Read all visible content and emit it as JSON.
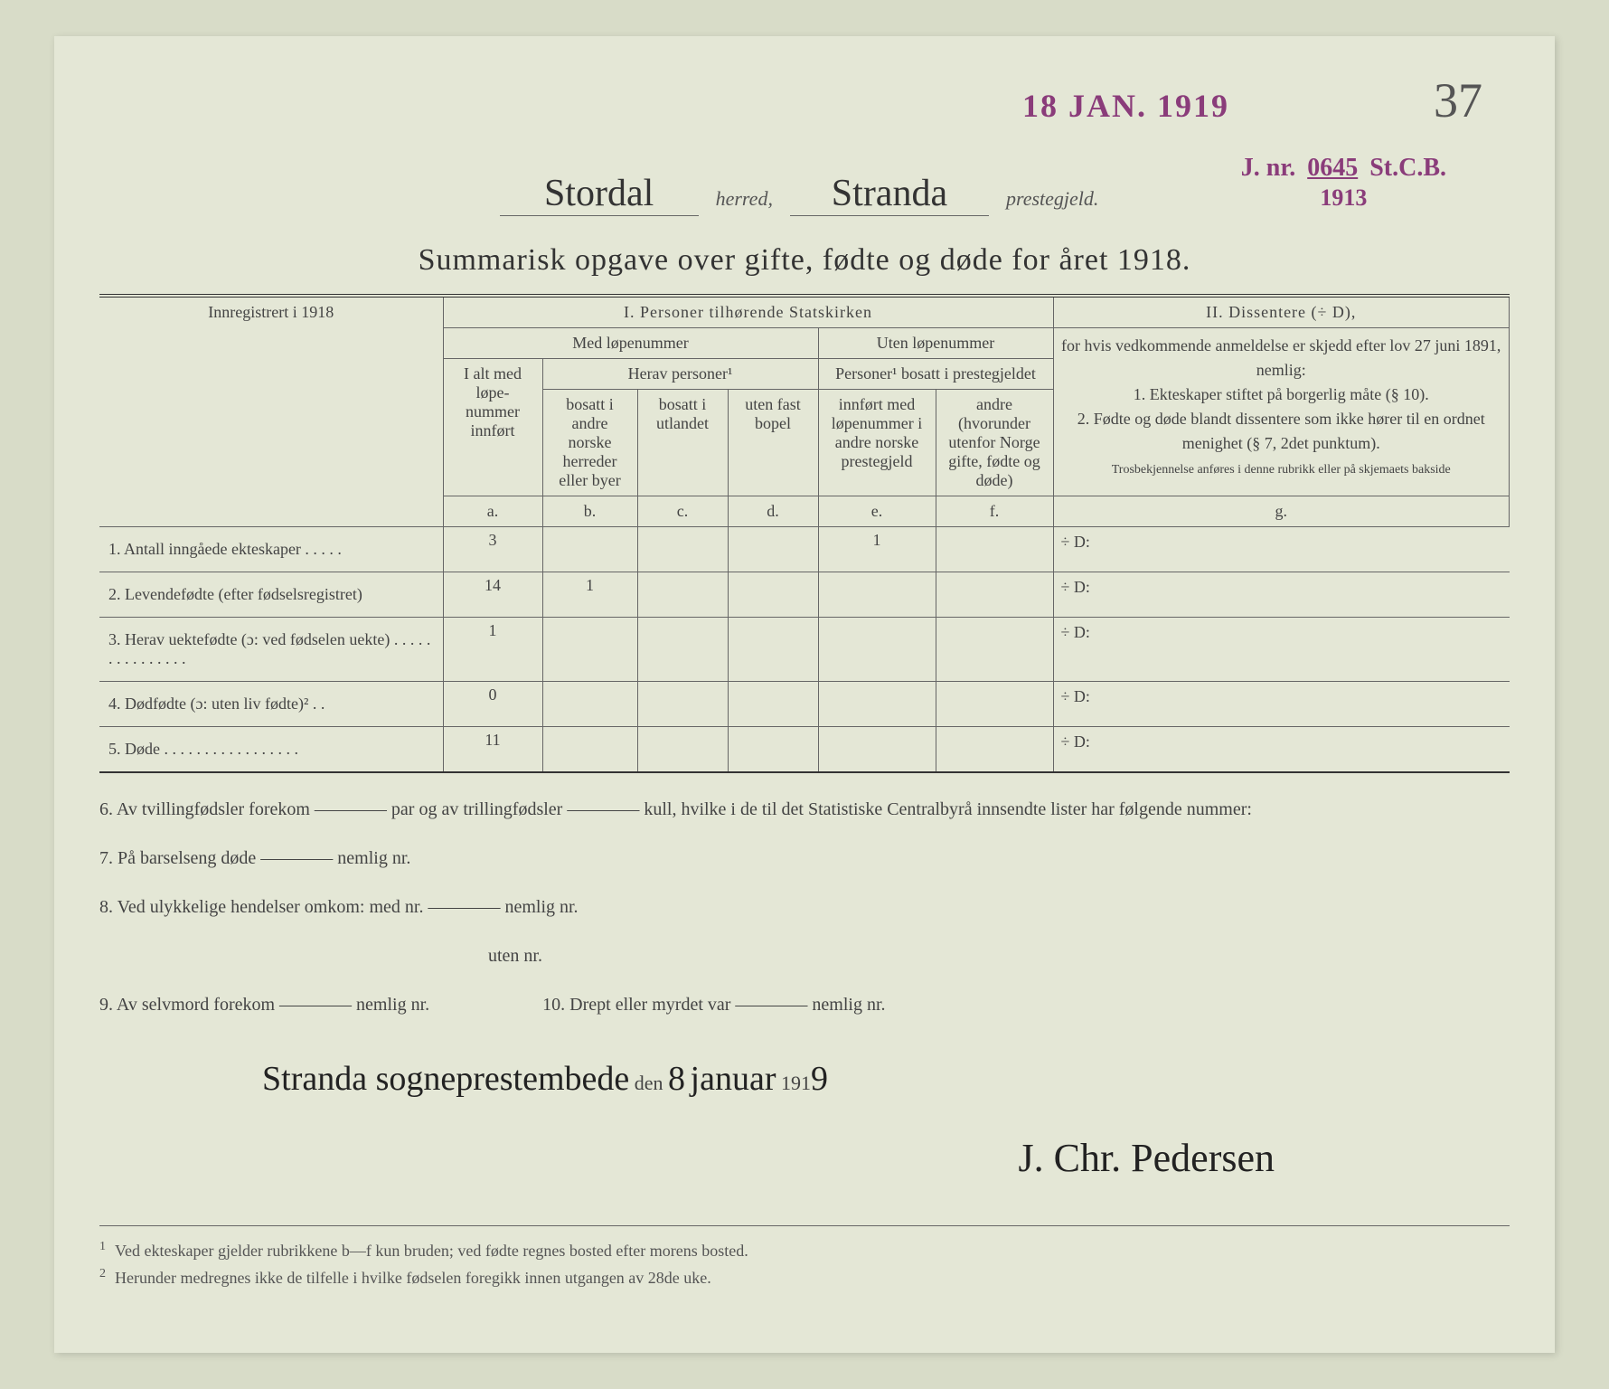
{
  "stamps": {
    "date": "18 JAN. 1919",
    "j_nr_label": "J. nr.",
    "j_nr_value": "0645",
    "j_nr_suffix": "St.C.B.",
    "j_nr_year": "1913",
    "page_number": "37"
  },
  "header": {
    "herred_value": "Stordal",
    "herred_label": "herred,",
    "prestegjeld_value": "Stranda",
    "prestegjeld_label": "prestegjeld.",
    "title": "Summarisk opgave over gifte, fødte og døde for året 1918."
  },
  "table": {
    "left_header": "Innregistrert i 1918",
    "section1_title": "I.  Personer tilhørende Statskirken",
    "section2_title": "II.  Dissentere (÷ D),",
    "med_lopenummer": "Med løpenummer",
    "uten_lopenummer": "Uten løpenummer",
    "herav_personer": "Herav personer¹",
    "personer_bosatt": "Personer¹ bosatt i prestegjeldet",
    "col_a": {
      "label": "I alt med løpe-nummer innført",
      "letter": "a."
    },
    "col_b": {
      "label": "bosatt i andre norske herreder eller byer",
      "letter": "b."
    },
    "col_c": {
      "label": "bosatt i utlandet",
      "letter": "c."
    },
    "col_d": {
      "label": "uten fast bopel",
      "letter": "d."
    },
    "col_e": {
      "label": "innført med løpenummer i andre norske prestegjeld",
      "letter": "e."
    },
    "col_f": {
      "label": "andre (hvorunder utenfor Norge gifte, fødte og døde)",
      "letter": "f."
    },
    "col_g": {
      "letter": "g."
    },
    "dissenter_text": "for hvis vedkommende anmeldelse er skjedd efter lov 27 juni 1891, nemlig:",
    "dissenter_item1": "1. Ekteskaper stiftet på borgerlig måte (§ 10).",
    "dissenter_item2": "2. Fødte og døde blandt dissentere som ikke hører til en ordnet menighet (§ 7, 2det punktum).",
    "dissenter_note": "Trosbekjennelse anføres i denne rubrikk eller på skjemaets bakside",
    "rows": [
      {
        "label": "1.  Antall inngåede ekteskaper . . . . .",
        "a": "3",
        "b": "",
        "c": "",
        "d": "",
        "e": "1",
        "f": "",
        "g": "÷ D:"
      },
      {
        "label": "2.  Levendefødte (efter fødselsregistret)",
        "a": "14",
        "b": "1",
        "c": "",
        "d": "",
        "e": "",
        "f": "",
        "g": "÷ D:"
      },
      {
        "label": "3.  Herav uektefødte (ɔ: ved fødselen uekte) . . . . . . . . . . . . . . .",
        "a": "1",
        "b": "",
        "c": "",
        "d": "",
        "e": "",
        "f": "",
        "g": "÷ D:"
      },
      {
        "label": "4.  Dødfødte (ɔ: uten liv fødte)² . .",
        "a": "0",
        "b": "",
        "c": "",
        "d": "",
        "e": "",
        "f": "",
        "g": "÷ D:"
      },
      {
        "label": "5.  Døde . . . . . . . . . . . . . . . . .",
        "a": "11",
        "b": "",
        "c": "",
        "d": "",
        "e": "",
        "f": "",
        "g": "÷ D:"
      }
    ]
  },
  "notes": {
    "n6": "6.  Av tvillingfødsler forekom ———— par og av trillingfødsler ———— kull, hvilke i de til det Statistiske Centralbyrå innsendte lister har følgende nummer:",
    "n7": "7.  På barselseng døde ———— nemlig nr.",
    "n8a": "8.  Ved ulykkelige hendelser omkom:  med nr. ———— nemlig nr.",
    "n8b": "uten nr.",
    "n9": "9.  Av selvmord forekom ———— nemlig nr.",
    "n10": "10.  Drept eller myrdet var ———— nemlig nr."
  },
  "signature": {
    "place": "Stranda sogneprestembede",
    "den": "den",
    "day": "8",
    "month": "januar",
    "year_prefix": "191",
    "year_suffix": "9",
    "name": "J. Chr. Pedersen"
  },
  "footnotes": {
    "f1": "Ved ekteskaper gjelder rubrikkene b—f kun bruden; ved fødte regnes bosted efter morens bosted.",
    "f2": "Herunder medregnes ikke de tilfelle i hvilke fødselen foregikk innen utgangen av 28de uke."
  },
  "colors": {
    "paper_bg": "#e4e7d6",
    "body_bg": "#d8dcc8",
    "stamp_color": "#8a3c7a",
    "text_color": "#333",
    "border_color": "#666"
  }
}
